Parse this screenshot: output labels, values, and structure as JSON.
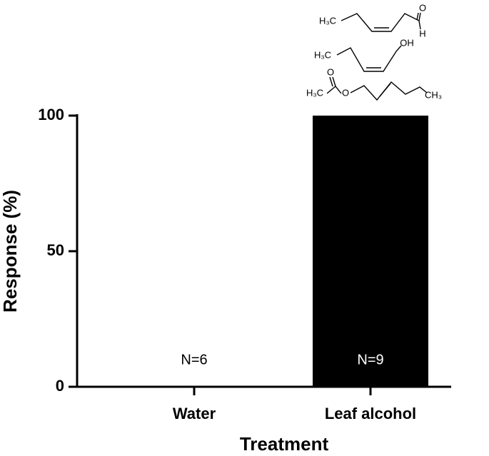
{
  "chart_data": {
    "type": "bar",
    "x_label": "Treatment",
    "y_label": "Response (%)",
    "categories": [
      "Water",
      "Leaf alcohol"
    ],
    "values": [
      0,
      100
    ],
    "annotations": [
      "N=6",
      "N=9"
    ],
    "color": "#000000",
    "ylim": [
      0,
      100
    ],
    "yticks": [
      0,
      50,
      100
    ],
    "grid": false,
    "structures": [
      {
        "labels": [
          "H₃C",
          "O",
          "H"
        ]
      },
      {
        "labels": [
          "H₃C",
          "OH"
        ]
      },
      {
        "labels": [
          "H₃C",
          "O",
          "O",
          "CH₃"
        ]
      }
    ]
  }
}
